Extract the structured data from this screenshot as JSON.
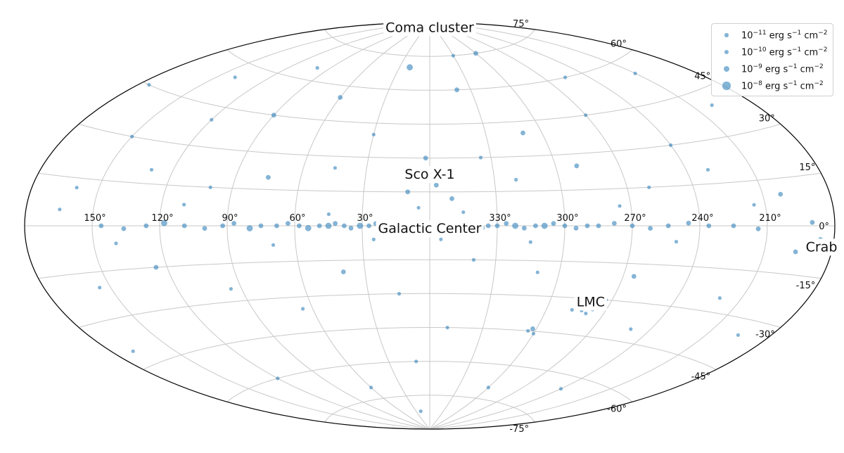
{
  "chart_data": {
    "type": "scatter",
    "projection": "aitoff",
    "coordinate_system": "galactic",
    "grid": true,
    "legend_position": "top-right",
    "color": "#1f77b4",
    "lon_tick_labels": [
      "150°",
      "120°",
      "90°",
      "60°",
      "30°",
      "330°",
      "300°",
      "270°",
      "240°",
      "210°"
    ],
    "lat_tick_labels": [
      "75°",
      "60°",
      "45°",
      "30°",
      "15°",
      "0°",
      "-15°",
      "-30°",
      "-45°",
      "-60°",
      "-75°"
    ],
    "annotations": [
      {
        "label": "Coma cluster",
        "l": 0,
        "b": 88
      },
      {
        "label": "Sco X-1",
        "l": 0,
        "b": 23
      },
      {
        "label": "Galactic Center",
        "l": 0,
        "b": -1
      },
      {
        "label": "LMC",
        "l": 280,
        "b": -31
      },
      {
        "label": "Crab",
        "l": 185,
        "b": -6
      }
    ],
    "legend": [
      {
        "base": "10",
        "exp": "−11",
        "unit": " erg s",
        "unit_exp": "−1",
        "unit2": " cm",
        "unit2_exp": "−2",
        "flux": 1e-11
      },
      {
        "base": "10",
        "exp": "−10",
        "unit": " erg s",
        "unit_exp": "−1",
        "unit2": " cm",
        "unit2_exp": "−2",
        "flux": 1e-10
      },
      {
        "base": "10",
        "exp": "−9",
        "unit": " erg s",
        "unit_exp": "−1",
        "unit2": " cm",
        "unit2_exp": "−2",
        "flux": 1e-09
      },
      {
        "base": "10",
        "exp": "−8",
        "unit": " erg s",
        "unit_exp": "−1",
        "unit2": " cm",
        "unit2_exp": "−2",
        "flux": 1e-08
      }
    ],
    "sources": [
      {
        "l": 0,
        "b": 0,
        "flux": 1e-09
      },
      {
        "l": 359,
        "b": -1,
        "flux": 1e-09
      },
      {
        "l": 3,
        "b": 1,
        "flux": 1e-09
      },
      {
        "l": 5,
        "b": -1,
        "flux": 1e-10
      },
      {
        "l": 7,
        "b": 0,
        "flux": 1e-10
      },
      {
        "l": 9,
        "b": 1,
        "flux": 1e-10
      },
      {
        "l": 12,
        "b": 0,
        "flux": 1e-10
      },
      {
        "l": 15,
        "b": -1,
        "flux": 1e-09
      },
      {
        "l": 18,
        "b": 0,
        "flux": 1e-10
      },
      {
        "l": 21,
        "b": 0,
        "flux": 1e-09
      },
      {
        "l": 24,
        "b": 1,
        "flux": 1e-10
      },
      {
        "l": 27,
        "b": 0,
        "flux": 1e-10
      },
      {
        "l": 31,
        "b": 0,
        "flux": 1e-09
      },
      {
        "l": 35,
        "b": -1,
        "flux": 1e-10
      },
      {
        "l": 38,
        "b": 0,
        "flux": 1e-10
      },
      {
        "l": 42,
        "b": 1,
        "flux": 1e-10
      },
      {
        "l": 45,
        "b": 0,
        "flux": 1e-09
      },
      {
        "l": 49,
        "b": 0,
        "flux": 1e-10
      },
      {
        "l": 54,
        "b": -1,
        "flux": 1e-09
      },
      {
        "l": 58,
        "b": 0,
        "flux": 1e-10
      },
      {
        "l": 63,
        "b": 1,
        "flux": 1e-10
      },
      {
        "l": 68,
        "b": 0,
        "flux": 1e-10
      },
      {
        "l": 75,
        "b": 0,
        "flux": 1e-10
      },
      {
        "l": 80,
        "b": -1,
        "flux": 1e-09
      },
      {
        "l": 87,
        "b": 1,
        "flux": 1e-10
      },
      {
        "l": 92,
        "b": 0,
        "flux": 1e-10
      },
      {
        "l": 100,
        "b": -1,
        "flux": 1e-10
      },
      {
        "l": 109,
        "b": 0,
        "flux": 1e-10
      },
      {
        "l": 118,
        "b": 1,
        "flux": 1e-09
      },
      {
        "l": 126,
        "b": 0,
        "flux": 1e-10
      },
      {
        "l": 136,
        "b": -1,
        "flux": 1e-10
      },
      {
        "l": 146,
        "b": 0,
        "flux": 1e-10
      },
      {
        "l": 357,
        "b": 0,
        "flux": 1e-09
      },
      {
        "l": 354,
        "b": 1,
        "flux": 1e-09
      },
      {
        "l": 352,
        "b": -1,
        "flux": 1e-10
      },
      {
        "l": 349,
        "b": 0,
        "flux": 1e-10
      },
      {
        "l": 346,
        "b": 0,
        "flux": 1e-09
      },
      {
        "l": 343,
        "b": 1,
        "flux": 1e-10
      },
      {
        "l": 340,
        "b": 0,
        "flux": 1e-10
      },
      {
        "l": 337,
        "b": -1,
        "flux": 1e-09
      },
      {
        "l": 334,
        "b": 0,
        "flux": 1e-10
      },
      {
        "l": 330,
        "b": 0,
        "flux": 1e-10
      },
      {
        "l": 326,
        "b": 1,
        "flux": 1e-10
      },
      {
        "l": 322,
        "b": 0,
        "flux": 1e-09
      },
      {
        "l": 318,
        "b": -1,
        "flux": 1e-10
      },
      {
        "l": 313,
        "b": 0,
        "flux": 1e-10
      },
      {
        "l": 309,
        "b": 0,
        "flux": 1e-09
      },
      {
        "l": 305,
        "b": 1,
        "flux": 1e-10
      },
      {
        "l": 300,
        "b": 0,
        "flux": 1e-10
      },
      {
        "l": 295,
        "b": -1,
        "flux": 1e-10
      },
      {
        "l": 290,
        "b": 0,
        "flux": 1e-10
      },
      {
        "l": 285,
        "b": 0,
        "flux": 1e-10
      },
      {
        "l": 278,
        "b": 1,
        "flux": 1e-10
      },
      {
        "l": 270,
        "b": 0,
        "flux": 1e-10
      },
      {
        "l": 262,
        "b": -1,
        "flux": 1e-10
      },
      {
        "l": 254,
        "b": 0,
        "flux": 1e-10
      },
      {
        "l": 245,
        "b": 1,
        "flux": 1e-10
      },
      {
        "l": 236,
        "b": 0,
        "flux": 1e-10
      },
      {
        "l": 225,
        "b": 0,
        "flux": 1e-10
      },
      {
        "l": 214,
        "b": -1,
        "flux": 1e-10
      },
      {
        "l": 184,
        "b": -6,
        "flux": 1e-08
      },
      {
        "l": 186,
        "b": -4,
        "flux": 1e-10
      },
      {
        "l": 190,
        "b": 1,
        "flux": 1e-10
      },
      {
        "l": 196,
        "b": -8,
        "flux": 1e-10
      },
      {
        "l": 202,
        "b": 10,
        "flux": 1e-10
      },
      {
        "l": 359,
        "b": 24,
        "flux": 1e-08
      },
      {
        "l": 2,
        "b": 30,
        "flux": 1e-10
      },
      {
        "l": 357,
        "b": 18,
        "flux": 1e-10
      },
      {
        "l": 10,
        "b": 15,
        "flux": 1e-10
      },
      {
        "l": 350,
        "b": 12,
        "flux": 1e-10
      },
      {
        "l": 280,
        "b": -32,
        "flux": 1e-09
      },
      {
        "l": 279,
        "b": -33,
        "flux": 1e-10
      },
      {
        "l": 281,
        "b": -31,
        "flux": 1e-10
      },
      {
        "l": 278,
        "b": -31,
        "flux": 1e-10
      },
      {
        "l": 283,
        "b": -33,
        "flux": 1e-10
      },
      {
        "l": 277,
        "b": -34,
        "flux": 1e-10
      },
      {
        "l": 276,
        "b": -32,
        "flux": 1e-11
      },
      {
        "l": 282,
        "b": -35,
        "flux": 1e-11
      },
      {
        "l": 284,
        "b": -30,
        "flux": 1e-11
      },
      {
        "l": 279,
        "b": -36,
        "flux": 1e-11
      },
      {
        "l": 286,
        "b": -32,
        "flux": 1e-11
      },
      {
        "l": 274,
        "b": -33,
        "flux": 1e-11
      },
      {
        "l": 281,
        "b": -29,
        "flux": 1e-11
      },
      {
        "l": 287,
        "b": -35,
        "flux": 1e-11
      },
      {
        "l": 273,
        "b": -30,
        "flux": 1e-11
      },
      {
        "l": 302,
        "b": -44,
        "flux": 1e-10
      },
      {
        "l": 300,
        "b": -46,
        "flux": 1e-11
      },
      {
        "l": 304,
        "b": -45,
        "flux": 1e-11
      },
      {
        "l": 20,
        "b": 70,
        "flux": 1e-09
      },
      {
        "l": 58,
        "b": 88,
        "flux": 1e-10
      },
      {
        "l": 300,
        "b": 75,
        "flux": 1e-10
      },
      {
        "l": 340,
        "b": 60,
        "flux": 1e-10
      },
      {
        "l": 60,
        "b": 55,
        "flux": 1e-10
      },
      {
        "l": 90,
        "b": 45,
        "flux": 1e-10
      },
      {
        "l": 120,
        "b": 40,
        "flux": 1e-11
      },
      {
        "l": 150,
        "b": 30,
        "flux": 1e-11
      },
      {
        "l": 200,
        "b": 40,
        "flux": 1e-11
      },
      {
        "l": 240,
        "b": 30,
        "flux": 1e-11
      },
      {
        "l": 270,
        "b": 45,
        "flux": 1e-11
      },
      {
        "l": 310,
        "b": 40,
        "flux": 1e-10
      },
      {
        "l": 30,
        "b": 40,
        "flux": 1e-11
      },
      {
        "l": 45,
        "b": 25,
        "flux": 1e-11
      },
      {
        "l": 75,
        "b": 20,
        "flux": 1e-10
      },
      {
        "l": 100,
        "b": 15,
        "flux": 1e-11
      },
      {
        "l": 130,
        "b": 20,
        "flux": 1e-11
      },
      {
        "l": 160,
        "b": 12,
        "flux": 1e-11
      },
      {
        "l": 230,
        "b": 20,
        "flux": 1e-11
      },
      {
        "l": 260,
        "b": 15,
        "flux": 1e-11
      },
      {
        "l": 290,
        "b": 25,
        "flux": 1e-10
      },
      {
        "l": 320,
        "b": 20,
        "flux": 1e-11
      },
      {
        "l": 335,
        "b": 30,
        "flux": 1e-11
      },
      {
        "l": 15,
        "b": -30,
        "flux": 1e-11
      },
      {
        "l": 40,
        "b": -20,
        "flux": 1e-10
      },
      {
        "l": 65,
        "b": -35,
        "flux": 1e-11
      },
      {
        "l": 95,
        "b": -25,
        "flux": 1e-11
      },
      {
        "l": 125,
        "b": -15,
        "flux": 1e-10
      },
      {
        "l": 155,
        "b": -20,
        "flux": 1e-11
      },
      {
        "l": 220,
        "b": -25,
        "flux": 1e-11
      },
      {
        "l": 250,
        "b": -40,
        "flux": 1e-11
      },
      {
        "l": 265,
        "b": -20,
        "flux": 1e-10
      },
      {
        "l": 310,
        "b": -20,
        "flux": 1e-11
      },
      {
        "l": 340,
        "b": -15,
        "flux": 1e-11
      },
      {
        "l": 350,
        "b": -45,
        "flux": 1e-11
      },
      {
        "l": 10,
        "b": -60,
        "flux": 1e-11
      },
      {
        "l": 60,
        "b": -70,
        "flux": 1e-11
      },
      {
        "l": 120,
        "b": -60,
        "flux": 1e-11
      },
      {
        "l": 240,
        "b": -65,
        "flux": 1e-11
      },
      {
        "l": 300,
        "b": -70,
        "flux": 1e-11
      },
      {
        "l": 20,
        "b": -82,
        "flux": 1e-11
      },
      {
        "l": 170,
        "b": -40,
        "flux": 1e-11
      },
      {
        "l": 195,
        "b": -35,
        "flux": 1e-11
      },
      {
        "l": 210,
        "b": 55,
        "flux": 1e-11
      },
      {
        "l": 175,
        "b": 45,
        "flux": 1e-11
      },
      {
        "l": 140,
        "b": 55,
        "flux": 1e-11
      },
      {
        "l": 100,
        "b": 65,
        "flux": 1e-11
      },
      {
        "l": 255,
        "b": 60,
        "flux": 1e-11
      },
      {
        "l": 330,
        "b": 75,
        "flux": 1e-11
      },
      {
        "l": 45,
        "b": 5,
        "flux": 1e-11
      },
      {
        "l": 70,
        "b": -8,
        "flux": 1e-11
      },
      {
        "l": 110,
        "b": 8,
        "flux": 1e-11
      },
      {
        "l": 140,
        "b": -6,
        "flux": 1e-11
      },
      {
        "l": 165,
        "b": 5,
        "flux": 1e-11
      },
      {
        "l": 215,
        "b": 7,
        "flux": 1e-11
      },
      {
        "l": 250,
        "b": -6,
        "flux": 1e-11
      },
      {
        "l": 275,
        "b": 8,
        "flux": 1e-11
      },
      {
        "l": 315,
        "b": -7,
        "flux": 1e-11
      },
      {
        "l": 345,
        "b": 6,
        "flux": 1e-11
      },
      {
        "l": 25,
        "b": -6,
        "flux": 1e-11
      },
      {
        "l": 5,
        "b": 8,
        "flux": 1e-11
      },
      {
        "l": 355,
        "b": -6,
        "flux": 1e-11
      }
    ]
  }
}
